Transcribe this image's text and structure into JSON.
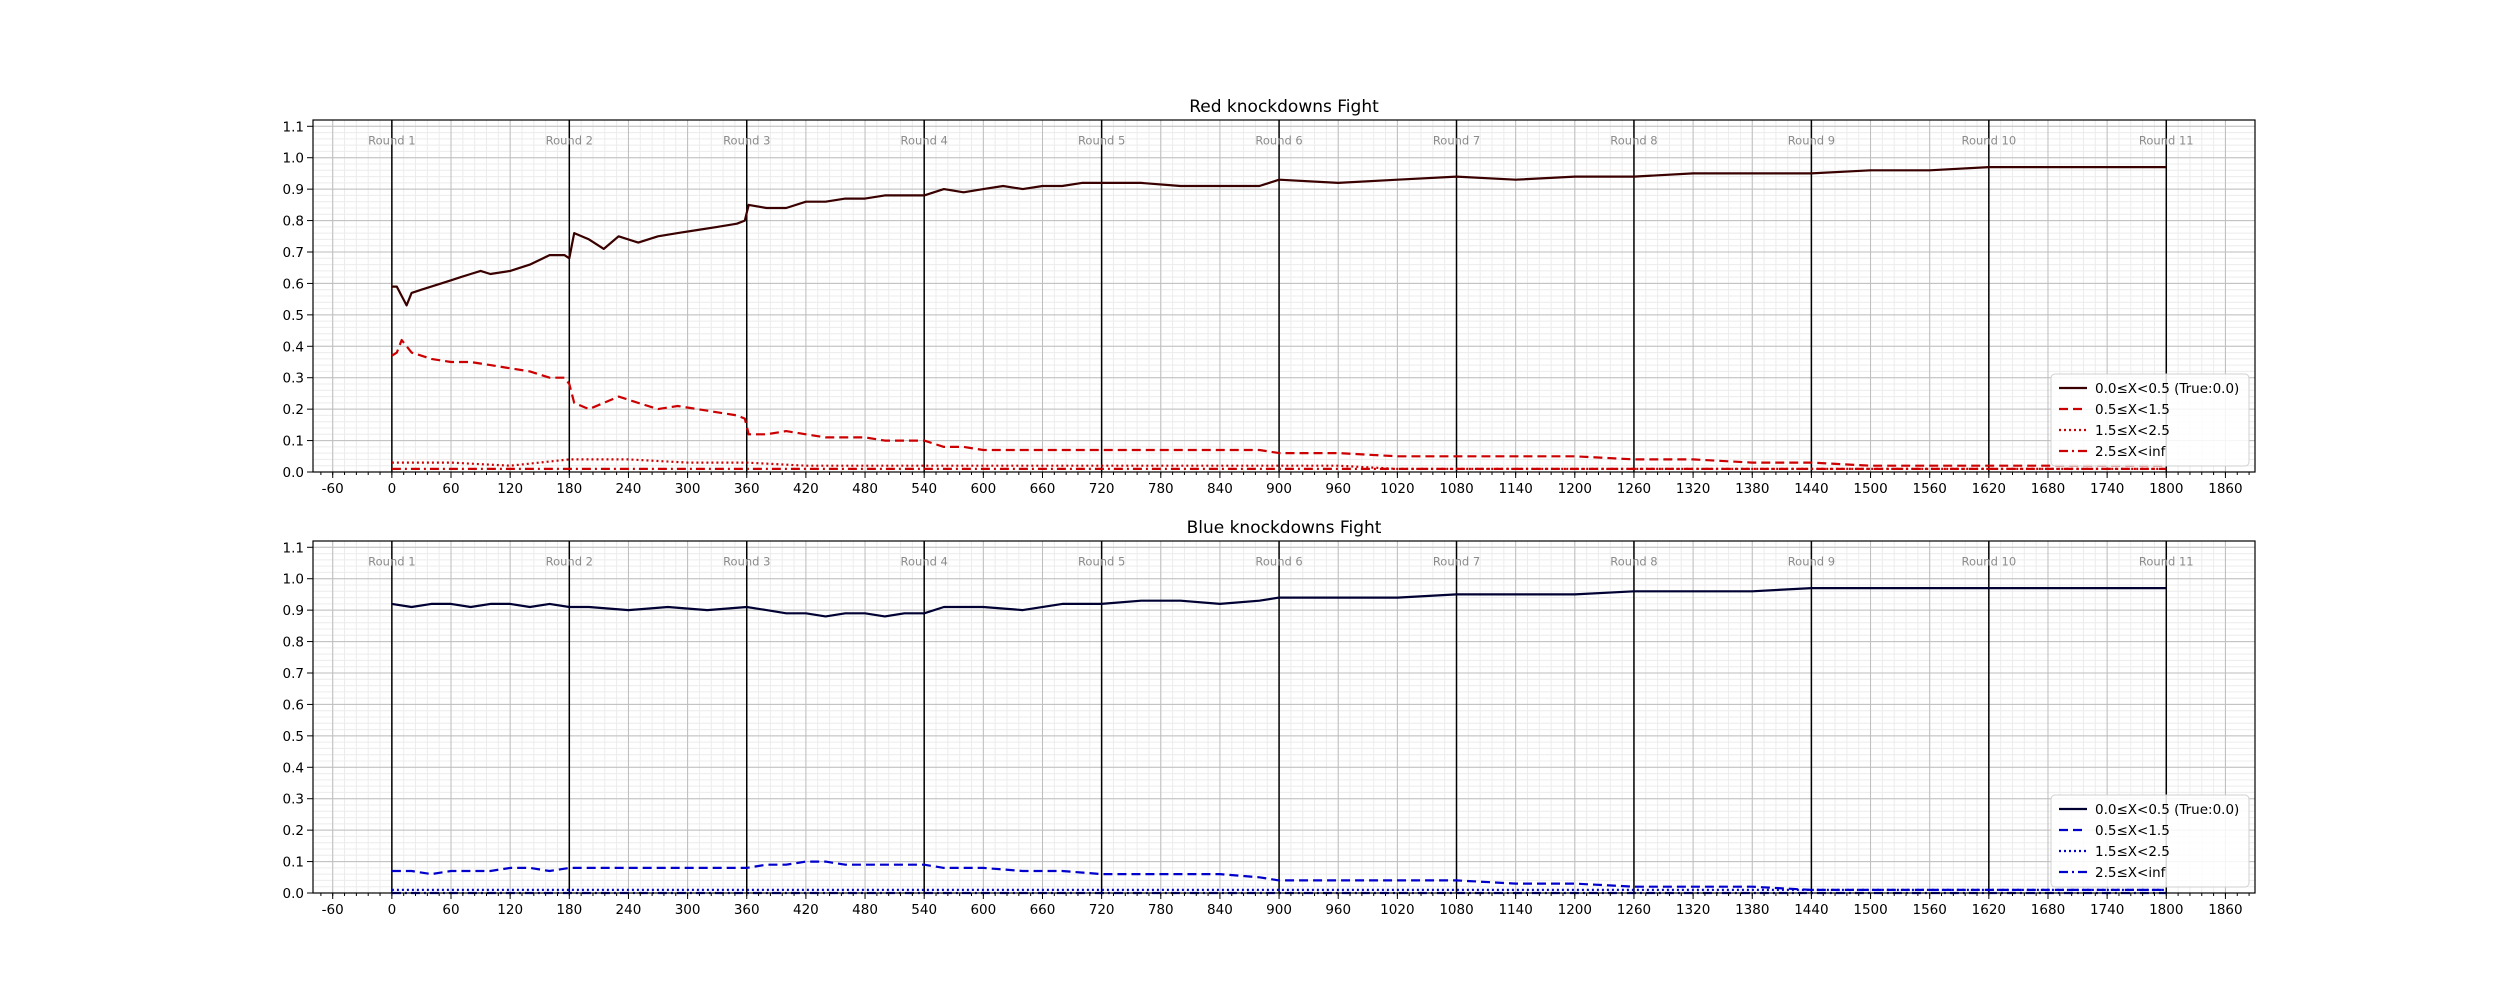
{
  "chart_data": [
    {
      "type": "line",
      "title": "Red knockdowns Fight",
      "xlabel": "",
      "ylabel": "",
      "xlim": [
        -80,
        1890
      ],
      "ylim": [
        0,
        1.12
      ],
      "xticks": [
        -60,
        0,
        60,
        120,
        180,
        240,
        300,
        360,
        420,
        480,
        540,
        600,
        660,
        720,
        780,
        840,
        900,
        960,
        1020,
        1080,
        1140,
        1200,
        1260,
        1320,
        1380,
        1440,
        1500,
        1560,
        1620,
        1680,
        1740,
        1800,
        1860
      ],
      "yticks": [
        0.0,
        0.1,
        0.2,
        0.3,
        0.4,
        0.5,
        0.6,
        0.7,
        0.8,
        0.9,
        1.0,
        1.1
      ],
      "ytick_labels": [
        "0.0",
        "0.1",
        "0.2",
        "0.3",
        "0.4",
        "0.5",
        "0.6",
        "0.7",
        "0.8",
        "0.9",
        "1.0",
        "1.1"
      ],
      "grid": true,
      "legend_position": "lower-right",
      "round_markers": [
        {
          "x": 0,
          "label": "Round 1"
        },
        {
          "x": 180,
          "label": "Round 2"
        },
        {
          "x": 360,
          "label": "Round 3"
        },
        {
          "x": 540,
          "label": "Round 4"
        },
        {
          "x": 720,
          "label": "Round 5"
        },
        {
          "x": 900,
          "label": "Round 6"
        },
        {
          "x": 1080,
          "label": "Round 7"
        },
        {
          "x": 1260,
          "label": "Round 8"
        },
        {
          "x": 1440,
          "label": "Round 9"
        },
        {
          "x": 1620,
          "label": "Round 10"
        },
        {
          "x": 1800,
          "label": "Round 11"
        }
      ],
      "series": [
        {
          "name": "0.0≤X<0.5 (True:0.0)",
          "color": "#3a0000",
          "dash": "solid",
          "x": [
            0,
            5,
            10,
            15,
            20,
            30,
            40,
            50,
            60,
            70,
            80,
            90,
            100,
            120,
            140,
            160,
            175,
            180,
            185,
            200,
            215,
            230,
            250,
            270,
            290,
            310,
            330,
            350,
            358,
            362,
            380,
            400,
            420,
            440,
            460,
            480,
            500,
            520,
            540,
            560,
            580,
            600,
            620,
            640,
            660,
            680,
            700,
            720,
            760,
            800,
            840,
            880,
            900,
            960,
            1020,
            1080,
            1140,
            1200,
            1260,
            1320,
            1380,
            1440,
            1500,
            1560,
            1620,
            1680,
            1800
          ],
          "y": [
            0.59,
            0.59,
            0.56,
            0.53,
            0.57,
            0.58,
            0.59,
            0.6,
            0.61,
            0.62,
            0.63,
            0.64,
            0.63,
            0.64,
            0.66,
            0.69,
            0.69,
            0.68,
            0.76,
            0.74,
            0.71,
            0.75,
            0.73,
            0.75,
            0.76,
            0.77,
            0.78,
            0.79,
            0.8,
            0.85,
            0.84,
            0.84,
            0.86,
            0.86,
            0.87,
            0.87,
            0.88,
            0.88,
            0.88,
            0.9,
            0.89,
            0.9,
            0.91,
            0.9,
            0.91,
            0.91,
            0.92,
            0.92,
            0.92,
            0.91,
            0.91,
            0.91,
            0.93,
            0.92,
            0.93,
            0.94,
            0.93,
            0.94,
            0.94,
            0.95,
            0.95,
            0.95,
            0.96,
            0.96,
            0.97,
            0.97,
            0.97
          ]
        },
        {
          "name": "0.5≤X<1.5",
          "color": "#cc0000",
          "dash": "dashed",
          "x": [
            0,
            5,
            10,
            15,
            20,
            30,
            40,
            60,
            80,
            100,
            120,
            140,
            160,
            175,
            180,
            185,
            200,
            215,
            230,
            250,
            270,
            290,
            310,
            330,
            350,
            358,
            362,
            380,
            400,
            420,
            440,
            460,
            480,
            500,
            520,
            540,
            560,
            580,
            600,
            640,
            680,
            720,
            760,
            800,
            840,
            880,
            900,
            960,
            1020,
            1080,
            1140,
            1200,
            1260,
            1320,
            1380,
            1440,
            1500,
            1560,
            1620,
            1680,
            1800
          ],
          "y": [
            0.37,
            0.38,
            0.42,
            0.4,
            0.38,
            0.37,
            0.36,
            0.35,
            0.35,
            0.34,
            0.33,
            0.32,
            0.3,
            0.3,
            0.28,
            0.22,
            0.2,
            0.22,
            0.24,
            0.22,
            0.2,
            0.21,
            0.2,
            0.19,
            0.18,
            0.17,
            0.12,
            0.12,
            0.13,
            0.12,
            0.11,
            0.11,
            0.11,
            0.1,
            0.1,
            0.1,
            0.08,
            0.08,
            0.07,
            0.07,
            0.07,
            0.07,
            0.07,
            0.07,
            0.07,
            0.07,
            0.06,
            0.06,
            0.05,
            0.05,
            0.05,
            0.05,
            0.04,
            0.04,
            0.03,
            0.03,
            0.02,
            0.02,
            0.02,
            0.02,
            0.02
          ]
        },
        {
          "name": "1.5≤X<2.5",
          "color": "#cc0000",
          "dash": "dotted",
          "x": [
            0,
            60,
            120,
            180,
            240,
            300,
            360,
            420,
            480,
            540,
            600,
            660,
            720,
            780,
            840,
            900,
            960,
            1020,
            1080,
            1140,
            1200,
            1260,
            1320,
            1380,
            1440,
            1500,
            1560,
            1620,
            1680,
            1800
          ],
          "y": [
            0.03,
            0.03,
            0.02,
            0.04,
            0.04,
            0.03,
            0.03,
            0.02,
            0.02,
            0.02,
            0.02,
            0.02,
            0.02,
            0.02,
            0.02,
            0.02,
            0.02,
            0.01,
            0.01,
            0.01,
            0.01,
            0.01,
            0.01,
            0.01,
            0.01,
            0.01,
            0.01,
            0.01,
            0.01,
            0.01
          ]
        },
        {
          "name": "2.5≤X<inf",
          "color": "#cc0000",
          "dash": "dashdot",
          "x": [
            0,
            180,
            360,
            540,
            720,
            900,
            1080,
            1260,
            1440,
            1620,
            1800
          ],
          "y": [
            0.01,
            0.01,
            0.01,
            0.01,
            0.01,
            0.01,
            0.01,
            0.01,
            0.01,
            0.01,
            0.01
          ]
        }
      ]
    },
    {
      "type": "line",
      "title": "Blue knockdowns Fight",
      "xlabel": "",
      "ylabel": "",
      "xlim": [
        -80,
        1890
      ],
      "ylim": [
        0,
        1.12
      ],
      "xticks": [
        -60,
        0,
        60,
        120,
        180,
        240,
        300,
        360,
        420,
        480,
        540,
        600,
        660,
        720,
        780,
        840,
        900,
        960,
        1020,
        1080,
        1140,
        1200,
        1260,
        1320,
        1380,
        1440,
        1500,
        1560,
        1620,
        1680,
        1740,
        1800,
        1860
      ],
      "yticks": [
        0.0,
        0.1,
        0.2,
        0.3,
        0.4,
        0.5,
        0.6,
        0.7,
        0.8,
        0.9,
        1.0,
        1.1
      ],
      "ytick_labels": [
        "0.0",
        "0.1",
        "0.2",
        "0.3",
        "0.4",
        "0.5",
        "0.6",
        "0.7",
        "0.8",
        "0.9",
        "1.0",
        "1.1"
      ],
      "grid": true,
      "legend_position": "lower-right",
      "round_markers": [
        {
          "x": 0,
          "label": "Round 1"
        },
        {
          "x": 180,
          "label": "Round 2"
        },
        {
          "x": 360,
          "label": "Round 3"
        },
        {
          "x": 540,
          "label": "Round 4"
        },
        {
          "x": 720,
          "label": "Round 5"
        },
        {
          "x": 900,
          "label": "Round 6"
        },
        {
          "x": 1080,
          "label": "Round 7"
        },
        {
          "x": 1260,
          "label": "Round 8"
        },
        {
          "x": 1440,
          "label": "Round 9"
        },
        {
          "x": 1620,
          "label": "Round 10"
        },
        {
          "x": 1800,
          "label": "Round 11"
        }
      ],
      "series": [
        {
          "name": "0.0≤X<0.5 (True:0.0)",
          "color": "#000033",
          "dash": "solid",
          "x": [
            0,
            20,
            40,
            60,
            80,
            100,
            120,
            140,
            160,
            180,
            200,
            240,
            280,
            320,
            360,
            380,
            400,
            420,
            440,
            460,
            480,
            500,
            520,
            540,
            560,
            600,
            640,
            680,
            720,
            760,
            800,
            840,
            880,
            900,
            960,
            1020,
            1080,
            1140,
            1200,
            1260,
            1320,
            1380,
            1440,
            1500,
            1560,
            1620,
            1680,
            1800
          ],
          "y": [
            0.92,
            0.91,
            0.92,
            0.92,
            0.91,
            0.92,
            0.92,
            0.91,
            0.92,
            0.91,
            0.91,
            0.9,
            0.91,
            0.9,
            0.91,
            0.9,
            0.89,
            0.89,
            0.88,
            0.89,
            0.89,
            0.88,
            0.89,
            0.89,
            0.91,
            0.91,
            0.9,
            0.92,
            0.92,
            0.93,
            0.93,
            0.92,
            0.93,
            0.94,
            0.94,
            0.94,
            0.95,
            0.95,
            0.95,
            0.96,
            0.96,
            0.96,
            0.97,
            0.97,
            0.97,
            0.97,
            0.97,
            0.97
          ]
        },
        {
          "name": "0.5≤X<1.5",
          "color": "#0000cc",
          "dash": "dashed",
          "x": [
            0,
            20,
            40,
            60,
            80,
            100,
            120,
            140,
            160,
            180,
            200,
            240,
            280,
            320,
            360,
            380,
            400,
            420,
            440,
            460,
            480,
            500,
            520,
            540,
            560,
            600,
            640,
            680,
            720,
            760,
            800,
            840,
            880,
            900,
            960,
            1020,
            1080,
            1140,
            1200,
            1260,
            1320,
            1380,
            1440,
            1500,
            1560,
            1620,
            1680,
            1800
          ],
          "y": [
            0.07,
            0.07,
            0.06,
            0.07,
            0.07,
            0.07,
            0.08,
            0.08,
            0.07,
            0.08,
            0.08,
            0.08,
            0.08,
            0.08,
            0.08,
            0.09,
            0.09,
            0.1,
            0.1,
            0.09,
            0.09,
            0.09,
            0.09,
            0.09,
            0.08,
            0.08,
            0.07,
            0.07,
            0.06,
            0.06,
            0.06,
            0.06,
            0.05,
            0.04,
            0.04,
            0.04,
            0.04,
            0.03,
            0.03,
            0.02,
            0.02,
            0.02,
            0.01,
            0.01,
            0.01,
            0.01,
            0.01,
            0.01
          ]
        },
        {
          "name": "1.5≤X<2.5",
          "color": "#0000cc",
          "dash": "dotted",
          "x": [
            0,
            180,
            360,
            540,
            720,
            900,
            1080,
            1260,
            1440,
            1620,
            1800
          ],
          "y": [
            0.01,
            0.01,
            0.01,
            0.01,
            0.01,
            0.01,
            0.01,
            0.01,
            0.01,
            0.01,
            0.01
          ]
        },
        {
          "name": "2.5≤X<inf",
          "color": "#0000cc",
          "dash": "dashdot",
          "x": [
            0,
            180,
            360,
            540,
            720,
            900,
            1080,
            1260,
            1440,
            1620,
            1800
          ],
          "y": [
            0.0,
            0.0,
            0.0,
            0.0,
            0.0,
            0.0,
            0.0,
            0.0,
            0.0,
            0.0,
            0.0
          ]
        }
      ]
    }
  ]
}
